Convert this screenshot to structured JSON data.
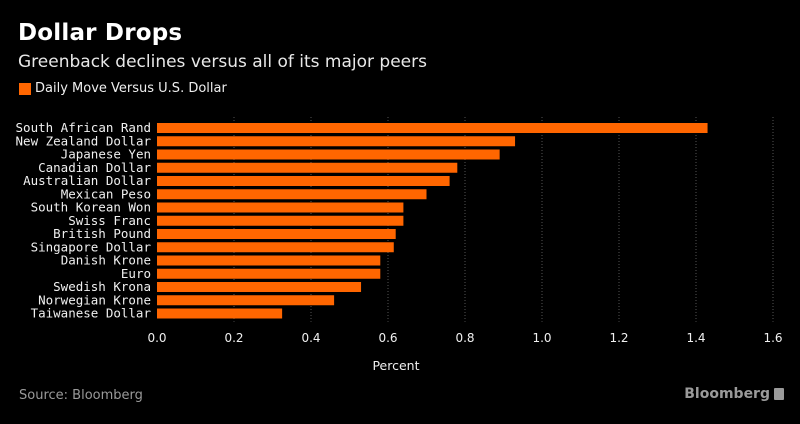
{
  "header": {
    "title": "Dollar Drops",
    "subtitle": "Greenback declines versus all of its major peers"
  },
  "footer": {
    "source": "Source: Bloomberg",
    "brand": "Bloomberg",
    "brand_icon": "bloomberg-terminal-icon"
  },
  "colors": {
    "bar": "#ff6600",
    "background": "#000000",
    "grid": "#555555"
  },
  "chart_data": {
    "type": "bar",
    "orientation": "horizontal",
    "title": "Dollar Drops",
    "subtitle": "Greenback declines versus all of its major peers",
    "xlabel": "Percent",
    "ylabel": "",
    "xlim": [
      0,
      1.6
    ],
    "xticks": [
      "0.0",
      "0.2",
      "0.4",
      "0.6",
      "0.8",
      "1.0",
      "1.2",
      "1.4",
      "1.6"
    ],
    "xtick_values": [
      0,
      0.2,
      0.4,
      0.6,
      0.8,
      1.0,
      1.2,
      1.4,
      1.6
    ],
    "grid": "vertical dotted",
    "legend": {
      "position": "top-left",
      "entries": [
        "Daily Move Versus U.S. Dollar"
      ]
    },
    "categories": [
      "South African Rand",
      "New Zealand Dollar",
      "Japanese Yen",
      "Canadian Dollar",
      "Australian Dollar",
      "Mexican Peso",
      "South Korean Won",
      "Swiss Franc",
      "British Pound",
      "Singapore Dollar",
      "Danish Krone",
      "Euro",
      "Swedish Krona",
      "Norwegian Krone",
      "Taiwanese Dollar"
    ],
    "series": [
      {
        "name": "Daily Move Versus U.S. Dollar",
        "values": [
          1.43,
          0.93,
          0.89,
          0.78,
          0.76,
          0.7,
          0.64,
          0.64,
          0.62,
          0.615,
          0.58,
          0.58,
          0.53,
          0.46,
          0.325
        ]
      }
    ]
  }
}
